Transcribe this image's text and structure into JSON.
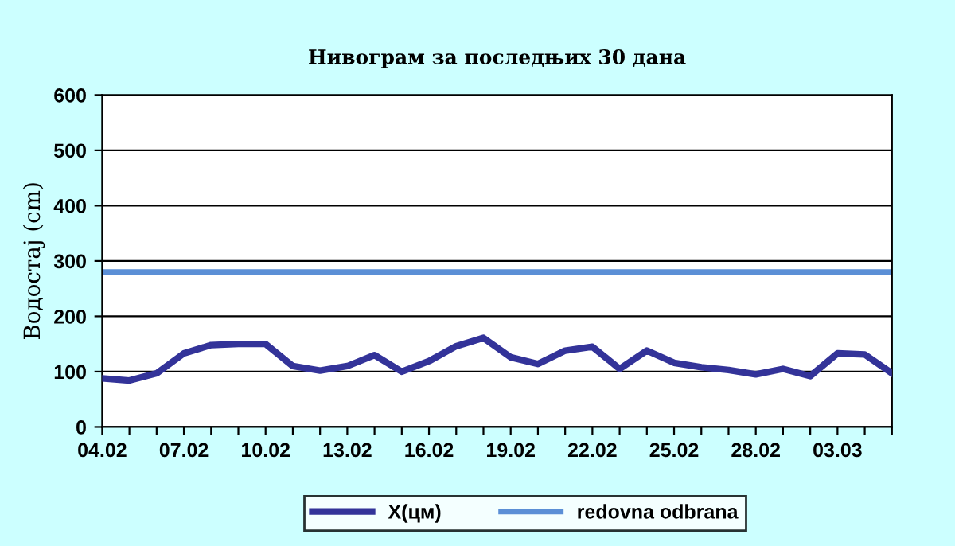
{
  "chart_data": {
    "type": "line",
    "title": "Нивограм за последњих 30 дана",
    "ylabel": "Водостај (cm)",
    "categories": [
      "04.02",
      null,
      null,
      "07.02",
      null,
      null,
      "10.02",
      null,
      null,
      "13.02",
      null,
      null,
      "16.02",
      null,
      null,
      "19.02",
      null,
      null,
      "22.02",
      null,
      null,
      "25.02",
      null,
      null,
      "28.02",
      null,
      null,
      "03.03",
      null,
      null
    ],
    "series": [
      {
        "name": "X(цм)",
        "color": "#333399",
        "values": [
          88,
          84,
          97,
          133,
          148,
          150,
          150,
          110,
          102,
          110,
          130,
          100,
          119,
          146,
          161,
          126,
          114,
          138,
          145,
          105,
          138,
          116,
          108,
          103,
          95,
          105,
          92,
          133,
          131,
          97
        ]
      }
    ],
    "ref_lines": [
      {
        "axis": "y",
        "value": 280,
        "label": "redovna odbrana",
        "color": "#5b8fd6"
      }
    ],
    "ylim": [
      0,
      600
    ],
    "yticks": [
      0,
      100,
      200,
      300,
      400,
      500,
      600
    ],
    "grid": "y",
    "legend": "bottom"
  }
}
